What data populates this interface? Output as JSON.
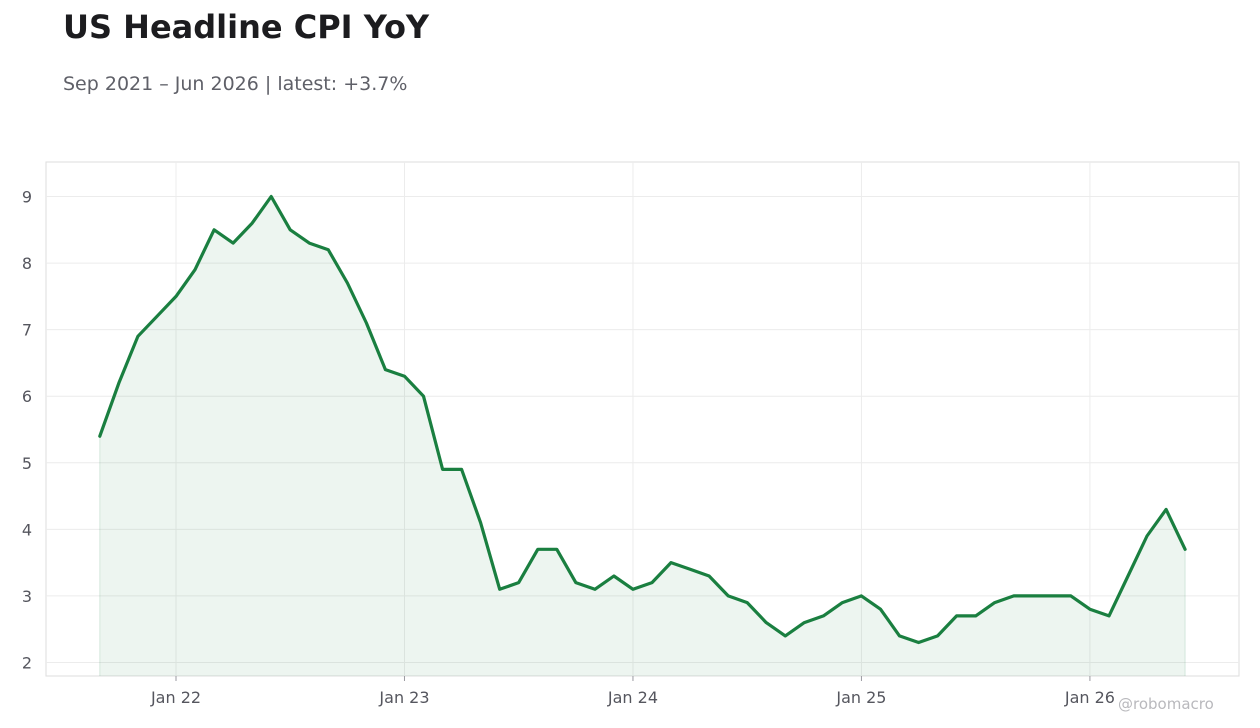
{
  "title": "US Headline CPI YoY",
  "subtitle": "Sep 2021 – Jun 2026 | latest: +3.7%",
  "watermark": "@robomacro",
  "colors": {
    "line": "#1a7f40",
    "fill": "#1a7f40",
    "grid": "#ececec",
    "frame": "#dddddd",
    "text": "#55565e"
  },
  "chart_data": {
    "type": "area",
    "title": "US Headline CPI YoY",
    "xlabel": "",
    "ylabel": "",
    "x_tick_labels": [
      "Jan 22",
      "Jan 23",
      "Jan 24",
      "Jan 25",
      "Jan 26"
    ],
    "y_ticks": [
      2,
      3,
      4,
      5,
      6,
      7,
      8,
      9
    ],
    "ylim": [
      1.8,
      9.5
    ],
    "xlim": [
      "2021-07",
      "2026-09"
    ],
    "grid": true,
    "legend": "none",
    "series": [
      {
        "x": [
          "2021-09",
          "2021-10",
          "2021-11",
          "2021-12",
          "2022-01",
          "2022-02",
          "2022-03",
          "2022-04",
          "2022-05",
          "2022-06",
          "2022-07",
          "2022-08",
          "2022-09",
          "2022-10",
          "2022-11",
          "2022-12",
          "2023-01",
          "2023-02",
          "2023-03",
          "2023-04",
          "2023-05",
          "2023-06",
          "2023-07",
          "2023-08",
          "2023-09",
          "2023-10",
          "2023-11",
          "2023-12",
          "2024-01",
          "2024-02",
          "2024-03",
          "2024-04",
          "2024-05",
          "2024-06",
          "2024-07",
          "2024-08",
          "2024-09",
          "2024-10",
          "2024-11",
          "2024-12",
          "2025-01",
          "2025-02",
          "2025-03",
          "2025-04",
          "2025-05",
          "2025-06",
          "2025-07",
          "2025-08",
          "2025-09",
          "2025-10",
          "2025-11",
          "2025-12",
          "2026-01",
          "2026-02",
          "2026-03",
          "2026-04",
          "2026-05",
          "2026-06"
        ],
        "values": [
          5.4,
          6.2,
          6.9,
          7.2,
          7.5,
          7.9,
          8.5,
          8.3,
          8.6,
          9.0,
          8.5,
          8.3,
          8.2,
          7.7,
          7.1,
          6.4,
          6.3,
          6.0,
          4.9,
          4.9,
          4.1,
          3.1,
          3.2,
          3.7,
          3.7,
          3.2,
          3.1,
          3.3,
          3.1,
          3.2,
          3.5,
          3.4,
          3.3,
          3.0,
          2.9,
          2.6,
          2.4,
          2.6,
          2.7,
          2.9,
          3.0,
          2.8,
          2.4,
          2.3,
          2.4,
          2.7,
          2.7,
          2.9,
          3.0,
          3.0,
          3.0,
          3.0,
          2.8,
          2.7,
          3.3,
          3.9,
          4.3,
          3.7
        ]
      }
    ]
  }
}
